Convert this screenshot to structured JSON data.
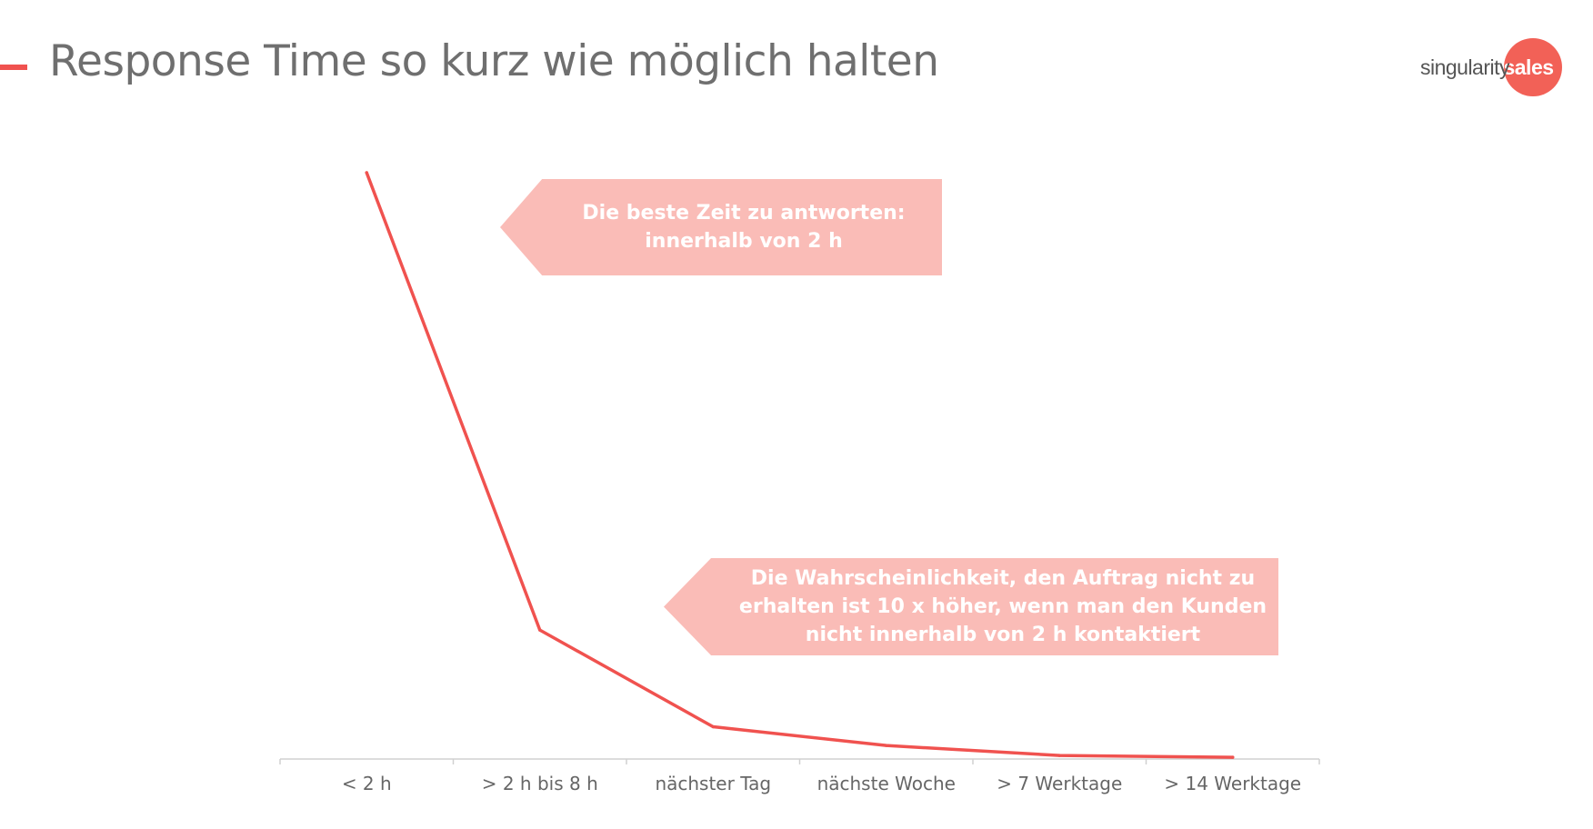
{
  "slide": {
    "title": "Response Time so kurz wie möglich halten"
  },
  "logo": {
    "text": "singularity",
    "accent": "sales",
    "accent_color": "#f26157"
  },
  "callouts": [
    {
      "lines": [
        "Die beste Zeit zu antworten:",
        "innerhalb von 2 h"
      ],
      "color": "#fabcb7"
    },
    {
      "lines": [
        "Die Wahrscheinlichkeit, den Auftrag nicht zu",
        "erhalten ist 10 x höher, wenn man den Kunden",
        "nicht innerhalb von 2 h kontaktiert"
      ],
      "color": "#fabcb7"
    }
  ],
  "chart_data": {
    "type": "line",
    "title": "",
    "xlabel": "",
    "ylabel": "",
    "categories": [
      "< 2 h",
      "> 2 h bis 8 h",
      "nächster Tag",
      "nächste Woche",
      "> 7 Werktage",
      "> 14 Werktage"
    ],
    "values": [
      100,
      22,
      5.5,
      2.3,
      0.6,
      0.3
    ],
    "ylim": [
      0,
      100
    ],
    "grid": false,
    "y_axis_visible": false,
    "line_color": "#f0524f",
    "axis_color": "#d0d0d0"
  }
}
